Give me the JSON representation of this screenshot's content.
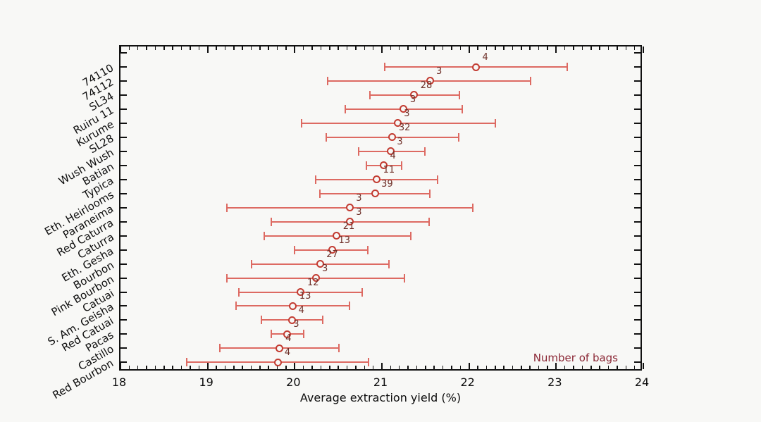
{
  "chart_data": {
    "type": "scatter",
    "subtype": "horizontal-error-bars",
    "title": "",
    "xlabel": "Average extraction yield (%)",
    "ylabel": "",
    "legend_note": "Number of bags",
    "xlim": [
      18,
      24
    ],
    "x_major_ticks": [
      "18",
      "19",
      "20",
      "21",
      "22",
      "23",
      "24"
    ],
    "x_minor_tick_step": 0.1,
    "grid": false,
    "legend_position": "bottom-right-inside",
    "categories": [
      "74110",
      "74112",
      "SL34",
      "Ruiru 11",
      "Kurume",
      "SL28",
      "Wush Wush",
      "Batian",
      "Typica",
      "Eth. Heirlooms",
      "Paraneima",
      "Red Caturra",
      "Caturra",
      "Eth. Gesha",
      "Bourbon",
      "Pink Bourbon",
      "Catuai",
      "S. Am. Geisha",
      "Red Catuai",
      "Pacas",
      "Castillo",
      "Red Bourbon"
    ],
    "series": [
      {
        "label": "74110",
        "number_of_bags": 4,
        "mean": 22.08,
        "low": 21.03,
        "high": 23.13
      },
      {
        "label": "74112",
        "number_of_bags": 3,
        "mean": 21.55,
        "low": 20.38,
        "high": 22.71
      },
      {
        "label": "SL34",
        "number_of_bags": 28,
        "mean": 21.37,
        "low": 20.86,
        "high": 21.89
      },
      {
        "label": "Ruiru 11",
        "number_of_bags": 3,
        "mean": 21.25,
        "low": 20.58,
        "high": 21.92
      },
      {
        "label": "Kurume",
        "number_of_bags": 3,
        "mean": 21.18,
        "low": 20.08,
        "high": 22.3
      },
      {
        "label": "SL28",
        "number_of_bags": 32,
        "mean": 21.12,
        "low": 20.36,
        "high": 21.88
      },
      {
        "label": "Wush Wush",
        "number_of_bags": 3,
        "mean": 21.1,
        "low": 20.73,
        "high": 21.49
      },
      {
        "label": "Batian",
        "number_of_bags": 4,
        "mean": 21.02,
        "low": 20.82,
        "high": 21.23
      },
      {
        "label": "Typica",
        "number_of_bags": 11,
        "mean": 20.94,
        "low": 20.24,
        "high": 21.64
      },
      {
        "label": "Eth. Heirlooms",
        "number_of_bags": 39,
        "mean": 20.92,
        "low": 20.29,
        "high": 21.55
      },
      {
        "label": "Paraneima",
        "number_of_bags": 3,
        "mean": 20.63,
        "low": 19.22,
        "high": 22.04
      },
      {
        "label": "Red Caturra",
        "number_of_bags": 3,
        "mean": 20.63,
        "low": 19.73,
        "high": 21.54
      },
      {
        "label": "Caturra",
        "number_of_bags": 21,
        "mean": 20.48,
        "low": 19.65,
        "high": 21.33
      },
      {
        "label": "Eth. Gesha",
        "number_of_bags": 13,
        "mean": 20.43,
        "low": 20.0,
        "high": 20.84
      },
      {
        "label": "Bourbon",
        "number_of_bags": 27,
        "mean": 20.29,
        "low": 19.5,
        "high": 21.08
      },
      {
        "label": "Pink Bourbon",
        "number_of_bags": 3,
        "mean": 20.24,
        "low": 19.22,
        "high": 21.26
      },
      {
        "label": "Catuai",
        "number_of_bags": 12,
        "mean": 20.07,
        "low": 19.36,
        "high": 20.77
      },
      {
        "label": "S. Am. Geisha",
        "number_of_bags": 13,
        "mean": 19.98,
        "low": 19.33,
        "high": 20.63
      },
      {
        "label": "Red Catuai",
        "number_of_bags": 4,
        "mean": 19.97,
        "low": 19.62,
        "high": 20.32
      },
      {
        "label": "Pacas",
        "number_of_bags": 3,
        "mean": 19.91,
        "low": 19.73,
        "high": 20.1
      },
      {
        "label": "Castillo",
        "number_of_bags": 4,
        "mean": 19.82,
        "low": 19.14,
        "high": 20.51
      },
      {
        "label": "Red Bourbon",
        "number_of_bags": 4,
        "mean": 19.81,
        "low": 18.76,
        "high": 20.85
      }
    ],
    "colors": {
      "error_bar": "#dd6a62",
      "marker_stroke": "#c23b31",
      "count_text": "#6e2f28",
      "legend_note_text": "#8b2836",
      "axis": "#111111",
      "background": "#f8f8f6"
    }
  }
}
